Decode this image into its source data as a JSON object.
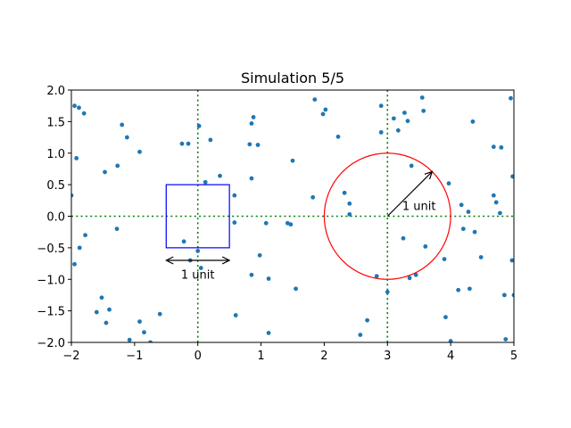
{
  "chart_data": {
    "type": "scatter",
    "title": "Simulation 5/5",
    "xlabel": "",
    "ylabel": "",
    "xlim": [
      -2,
      5
    ],
    "ylim": [
      -2,
      2
    ],
    "grid": false,
    "x_ticks": [
      -2,
      -1,
      0,
      1,
      2,
      3,
      4,
      5
    ],
    "y_ticks": [
      -2.0,
      -1.5,
      -1.0,
      -0.5,
      0.0,
      0.5,
      1.0,
      1.5,
      2.0
    ],
    "x_tick_labels": [
      "−2",
      "−1",
      "0",
      "1",
      "2",
      "3",
      "4",
      "5"
    ],
    "y_tick_labels": [
      "−2.0",
      "−1.5",
      "−1.0",
      "−0.5",
      "0.0",
      "0.5",
      "1.0",
      "1.5",
      "2.0"
    ],
    "point_color": "#1f77b4",
    "points": [
      [
        -1.95,
        1.75
      ],
      [
        -1.88,
        1.72
      ],
      [
        -1.8,
        1.63
      ],
      [
        -1.92,
        0.92
      ],
      [
        -2.0,
        0.33
      ],
      [
        -1.87,
        -0.5
      ],
      [
        -1.78,
        -0.3
      ],
      [
        -1.95,
        -0.76
      ],
      [
        -1.6,
        -1.52
      ],
      [
        -1.52,
        -1.29
      ],
      [
        -1.45,
        -1.69
      ],
      [
        -1.4,
        -1.48
      ],
      [
        -1.47,
        0.7
      ],
      [
        -1.27,
        0.8
      ],
      [
        -1.28,
        -0.2
      ],
      [
        -1.2,
        1.45
      ],
      [
        -1.12,
        1.25
      ],
      [
        -1.08,
        -1.96
      ],
      [
        -0.92,
        1.02
      ],
      [
        -0.92,
        -1.67
      ],
      [
        -0.85,
        -1.84
      ],
      [
        -0.75,
        -2.0
      ],
      [
        -0.6,
        -1.55
      ],
      [
        -0.25,
        1.15
      ],
      [
        -0.15,
        1.15
      ],
      [
        -0.22,
        -0.4
      ],
      [
        -0.12,
        -0.7
      ],
      [
        0.02,
        1.43
      ],
      [
        0.0,
        -0.55
      ],
      [
        0.05,
        -0.82
      ],
      [
        0.12,
        0.54
      ],
      [
        0.2,
        1.21
      ],
      [
        0.35,
        0.64
      ],
      [
        0.58,
        0.33
      ],
      [
        0.58,
        -0.1
      ],
      [
        0.6,
        -1.57
      ],
      [
        0.82,
        1.14
      ],
      [
        0.85,
        1.47
      ],
      [
        0.88,
        1.57
      ],
      [
        0.85,
        0.6
      ],
      [
        0.95,
        1.13
      ],
      [
        0.98,
        -0.62
      ],
      [
        0.85,
        -0.93
      ],
      [
        1.08,
        -0.11
      ],
      [
        1.12,
        -1.85
      ],
      [
        1.12,
        -0.99
      ],
      [
        1.42,
        -0.11
      ],
      [
        1.47,
        -0.13
      ],
      [
        1.5,
        0.88
      ],
      [
        1.55,
        -1.15
      ],
      [
        1.82,
        0.3
      ],
      [
        1.85,
        1.85
      ],
      [
        1.98,
        1.62
      ],
      [
        2.02,
        1.69
      ],
      [
        2.22,
        1.26
      ],
      [
        2.32,
        0.37
      ],
      [
        2.4,
        0.2
      ],
      [
        2.4,
        0.03
      ],
      [
        2.57,
        -1.88
      ],
      [
        2.68,
        -1.65
      ],
      [
        2.83,
        -0.95
      ],
      [
        2.9,
        1.75
      ],
      [
        2.9,
        1.33
      ],
      [
        3.0,
        -1.2
      ],
      [
        3.1,
        1.55
      ],
      [
        3.17,
        1.36
      ],
      [
        3.27,
        1.64
      ],
      [
        3.32,
        1.51
      ],
      [
        3.38,
        0.8
      ],
      [
        3.25,
        -0.35
      ],
      [
        3.35,
        -0.98
      ],
      [
        3.45,
        -0.93
      ],
      [
        3.55,
        1.88
      ],
      [
        3.57,
        1.67
      ],
      [
        3.6,
        -0.48
      ],
      [
        3.9,
        -0.68
      ],
      [
        3.97,
        0.52
      ],
      [
        3.92,
        -1.6
      ],
      [
        4.0,
        -1.98
      ],
      [
        4.12,
        -1.17
      ],
      [
        4.17,
        0.18
      ],
      [
        4.2,
        -0.2
      ],
      [
        4.28,
        0.07
      ],
      [
        4.3,
        -1.15
      ],
      [
        4.35,
        1.5
      ],
      [
        4.38,
        -0.25
      ],
      [
        4.48,
        -0.65
      ],
      [
        4.68,
        1.1
      ],
      [
        4.68,
        0.33
      ],
      [
        4.72,
        0.22
      ],
      [
        4.8,
        1.09
      ],
      [
        4.85,
        -1.25
      ],
      [
        4.87,
        -1.95
      ],
      [
        4.95,
        1.87
      ],
      [
        4.98,
        0.63
      ],
      [
        4.97,
        -0.7
      ],
      [
        5.0,
        -1.25
      ],
      [
        4.78,
        0.05
      ]
    ],
    "square": {
      "x": -0.5,
      "y": -0.5,
      "width": 1,
      "height": 1,
      "color": "#0000ff"
    },
    "circle": {
      "cx": 3,
      "cy": 0,
      "r": 1,
      "color": "#ff0000"
    },
    "reference_lines": [
      {
        "axis": "y",
        "value": 0,
        "color": "#008000",
        "style": "dotted"
      },
      {
        "axis": "x",
        "value": 0,
        "color": "#008000",
        "style": "dotted"
      },
      {
        "axis": "x",
        "value": 3,
        "color": "#008000",
        "style": "dotted"
      }
    ],
    "square_measure": {
      "from": -0.5,
      "to": 0.5,
      "y": -0.7,
      "label_y": -0.92,
      "label": "1 unit"
    },
    "radius_arrow": {
      "from": [
        3,
        0
      ],
      "to": [
        3.707,
        0.707
      ],
      "label": "1 unit",
      "label_x": 3.5,
      "label_y": 0.17
    }
  }
}
